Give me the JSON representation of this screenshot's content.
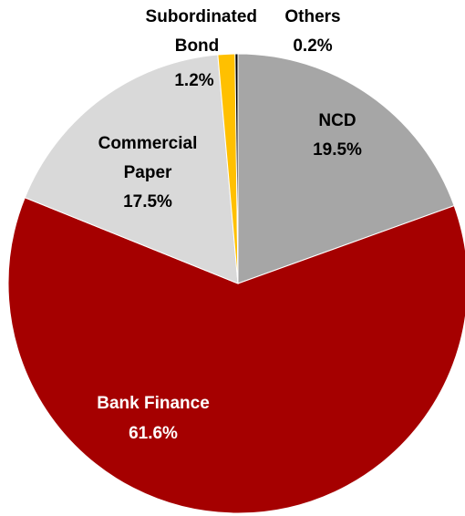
{
  "chart_data": {
    "type": "pie",
    "slices": [
      {
        "name": "NCD",
        "value": 19.5,
        "label": "19.5%",
        "color": "#A6A6A6",
        "name_color": "#000000",
        "value_color": "#000000"
      },
      {
        "name": "Bank Finance",
        "value": 61.6,
        "label": "61.6%",
        "color": "#A50000",
        "name_color": "#FFFFFF",
        "value_color": "#FFFFFF"
      },
      {
        "name": "Commercial Paper",
        "value": 17.5,
        "label": "17.5%",
        "color": "#D9D9D9",
        "name_color": "#000000",
        "value_color": "#000000"
      },
      {
        "name": "Subordinated Bond",
        "value": 1.2,
        "label": "1.2%",
        "color": "#FFC000",
        "name_color": "#000000",
        "value_color": "#000000"
      },
      {
        "name": "Others",
        "value": 0.2,
        "label": "0.2%",
        "color": "#000000",
        "name_color": "#000000",
        "value_color": "#000000"
      }
    ],
    "start": "12 o'clock",
    "direction": "clockwise",
    "legend": "none",
    "data_labels": "category name and percentage"
  }
}
